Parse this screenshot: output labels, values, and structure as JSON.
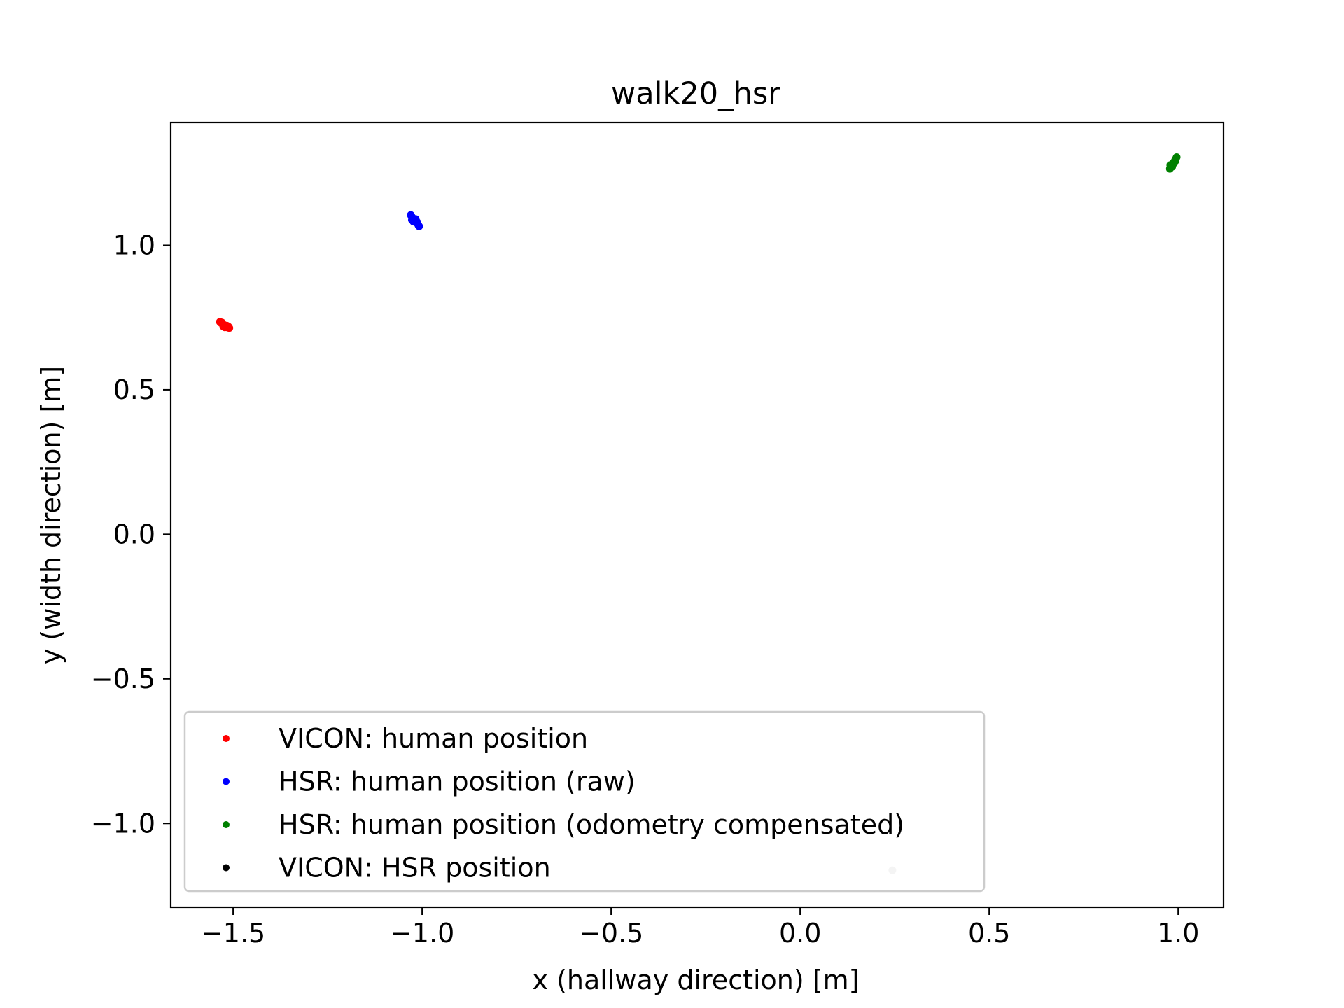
{
  "chart_data": {
    "type": "scatter",
    "title": "walk20_hsr",
    "xlabel": "x (hallway direction) [m]",
    "ylabel": "y (width direction) [m]",
    "xlim": [
      -1.665,
      1.12
    ],
    "ylim": [
      -1.29,
      1.425
    ],
    "x_ticks": [
      {
        "value": -1.5,
        "label": "−1.5"
      },
      {
        "value": -1.0,
        "label": "−1.0"
      },
      {
        "value": -0.5,
        "label": "−0.5"
      },
      {
        "value": 0.0,
        "label": "0.0"
      },
      {
        "value": 0.5,
        "label": "0.5"
      },
      {
        "value": 1.0,
        "label": "1.0"
      }
    ],
    "y_ticks": [
      {
        "value": -1.0,
        "label": "−1.0"
      },
      {
        "value": -0.5,
        "label": "−0.5"
      },
      {
        "value": 0.0,
        "label": "0.0"
      },
      {
        "value": 0.5,
        "label": "0.5"
      },
      {
        "value": 1.0,
        "label": "1.0"
      }
    ],
    "grid": false,
    "legend_position": "lower-left",
    "series": [
      {
        "name": "VICON: human position",
        "color": "#ff0000",
        "points": [
          [
            -1.535,
            0.735
          ],
          [
            -1.53,
            0.733
          ],
          [
            -1.528,
            0.728
          ],
          [
            -1.525,
            0.725
          ],
          [
            -1.523,
            0.722
          ],
          [
            -1.52,
            0.72
          ],
          [
            -1.518,
            0.718
          ],
          [
            -1.515,
            0.716
          ],
          [
            -1.513,
            0.715
          ],
          [
            -1.51,
            0.714
          ],
          [
            -1.522,
            0.716
          ],
          [
            -1.526,
            0.719
          ],
          [
            -1.532,
            0.731
          ],
          [
            -1.517,
            0.722
          ],
          [
            -1.512,
            0.718
          ]
        ]
      },
      {
        "name": "HSR: human position (raw)",
        "color": "#0000ff",
        "points": [
          [
            -1.03,
            1.105
          ],
          [
            -1.028,
            1.1
          ],
          [
            -1.025,
            1.095
          ],
          [
            -1.022,
            1.09
          ],
          [
            -1.02,
            1.087
          ],
          [
            -1.018,
            1.083
          ],
          [
            -1.015,
            1.079
          ],
          [
            -1.012,
            1.075
          ],
          [
            -1.01,
            1.07
          ],
          [
            -1.008,
            1.066
          ],
          [
            -1.027,
            1.088
          ],
          [
            -1.023,
            1.082
          ],
          [
            -1.017,
            1.091
          ],
          [
            -1.013,
            1.08
          ]
        ]
      },
      {
        "name": "HSR: human position (odometry compensated)",
        "color": "#008000",
        "points": [
          [
            0.978,
            1.265
          ],
          [
            0.98,
            1.27
          ],
          [
            0.982,
            1.275
          ],
          [
            0.985,
            1.28
          ],
          [
            0.987,
            1.285
          ],
          [
            0.99,
            1.29
          ],
          [
            0.992,
            1.295
          ],
          [
            0.994,
            1.3
          ],
          [
            0.996,
            1.305
          ],
          [
            0.984,
            1.272
          ],
          [
            0.988,
            1.283
          ],
          [
            0.993,
            1.292
          ],
          [
            0.979,
            1.278
          ]
        ]
      },
      {
        "name": "VICON: HSR position",
        "color": "#000000",
        "points": []
      }
    ],
    "extra_marks": [
      {
        "color": "#c8c8c8",
        "points": [
          [
            0.244,
            -1.162
          ]
        ]
      }
    ]
  }
}
